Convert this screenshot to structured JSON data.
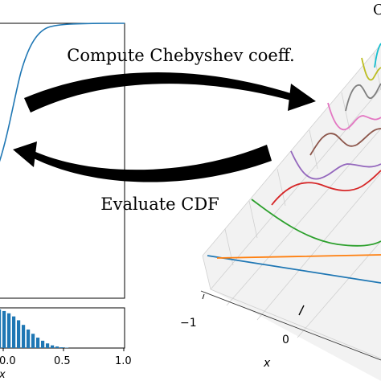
{
  "labels": {
    "top_arrow": "Compute Chebyshev coeff.",
    "bottom_arrow": "Evaluate CDF",
    "corner_letter": "C"
  },
  "bottom_panel": {
    "ticks": [
      "0.0",
      "0.5",
      "1.0"
    ],
    "xlabel": "x",
    "bar_heights": [
      1.0,
      0.96,
      0.9,
      0.82,
      0.72,
      0.6,
      0.48,
      0.37,
      0.27,
      0.19,
      0.12,
      0.07,
      0.04,
      0.02,
      0.01
    ]
  },
  "surface_3d": {
    "ticks": [
      "−1",
      "0"
    ],
    "xlabel": "x",
    "series_colors": [
      "#1f77b4",
      "#ff7f0e",
      "#2ca02c",
      "#d62728",
      "#9467bd",
      "#8c564b",
      "#e377c2",
      "#7f7f7f",
      "#bcbd22",
      "#17becf"
    ]
  },
  "colors": {
    "cdf_line": "#1f77b4",
    "bars": "#1f77b4",
    "arrow": "#000000"
  }
}
